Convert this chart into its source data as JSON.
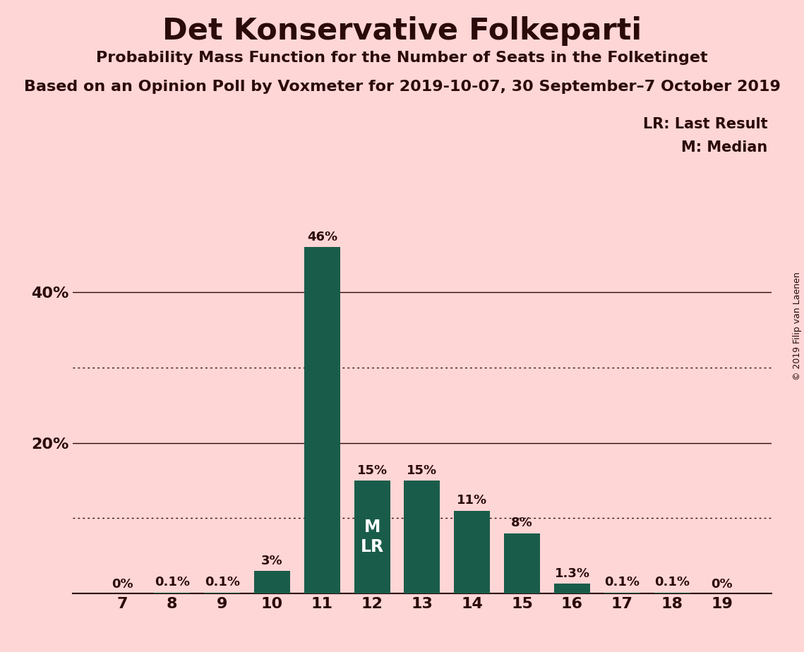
{
  "title": "Det Konservative Folkeparti",
  "subtitle1": "Probability Mass Function for the Number of Seats in the Folketinget",
  "subtitle2": "Based on an Opinion Poll by Voxmeter for 2019-10-07, 30 September–7 October 2019",
  "copyright": "© 2019 Filip van Laenen",
  "seats": [
    7,
    8,
    9,
    10,
    11,
    12,
    13,
    14,
    15,
    16,
    17,
    18,
    19
  ],
  "values": [
    0.0,
    0.1,
    0.1,
    3.0,
    46.0,
    15.0,
    15.0,
    11.0,
    8.0,
    1.3,
    0.1,
    0.1,
    0.0
  ],
  "labels": [
    "0%",
    "0.1%",
    "0.1%",
    "3%",
    "46%",
    "15%",
    "15%",
    "11%",
    "8%",
    "1.3%",
    "0.1%",
    "0.1%",
    "0%"
  ],
  "bar_color": "#1a5c4a",
  "background_color": "#ffd6d6",
  "text_color": "#2b0a0a",
  "median_seat": 12,
  "last_result_seat": 12,
  "median_label": "M",
  "lr_label": "LR",
  "legend_lr": "LR: Last Result",
  "legend_m": "M: Median",
  "ylim": [
    0,
    52
  ],
  "dotted_grid_values": [
    10,
    30
  ],
  "solid_grid_values": [
    20,
    40
  ]
}
